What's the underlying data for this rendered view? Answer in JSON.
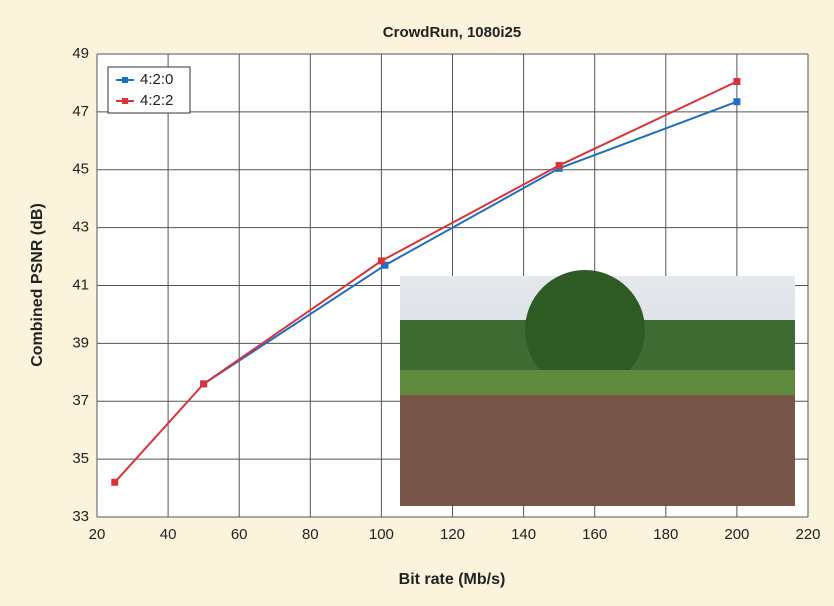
{
  "chart_data": {
    "type": "line",
    "title": "CrowdRun, 1080i25",
    "x_label": "Bit rate (Mb/s)",
    "y_label": "Combined PSNR (dB)",
    "xlim": [
      20,
      220
    ],
    "xticks": [
      20,
      40,
      60,
      80,
      100,
      120,
      140,
      160,
      180,
      200,
      220
    ],
    "ylim": [
      33,
      49
    ],
    "yticks": [
      33,
      35,
      37,
      39,
      41,
      43,
      45,
      47,
      49
    ],
    "grid": true,
    "legend": "top-left",
    "series": [
      {
        "name": "4:2:0",
        "color": "#1f6fc4",
        "x": [
          50,
          101,
          150,
          200
        ],
        "values": [
          37.6,
          41.7,
          45.05,
          47.35
        ]
      },
      {
        "name": "4:2:2",
        "color": "#d8353a",
        "x": [
          25,
          50,
          100,
          150,
          200
        ],
        "values": [
          34.2,
          37.6,
          41.85,
          45.15,
          48.05
        ]
      }
    ]
  }
}
